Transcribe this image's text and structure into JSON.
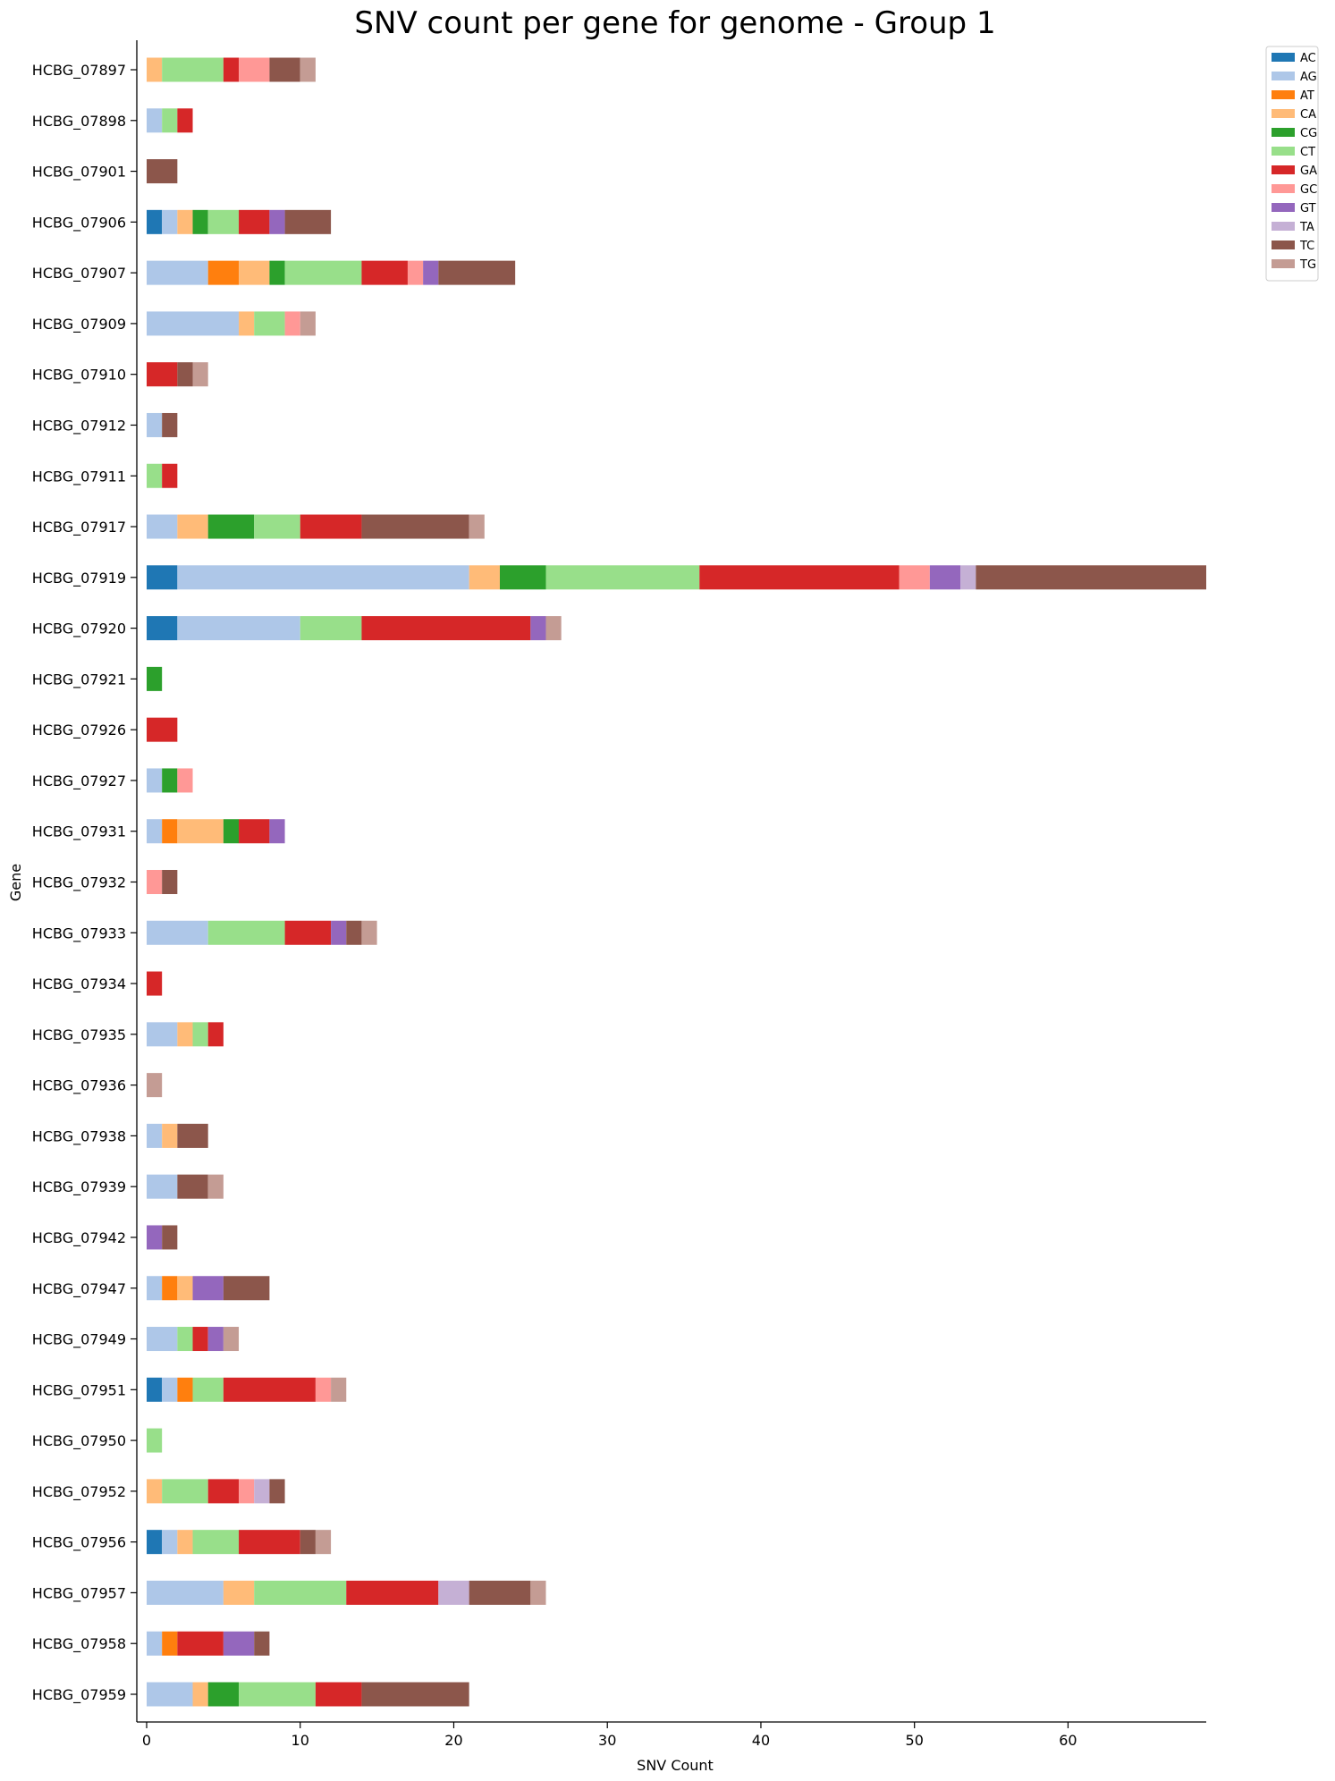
{
  "chart_data": {
    "type": "bar",
    "orientation": "horizontal",
    "stacked": true,
    "title": "SNV count per gene for genome - Group 1",
    "xlabel": "SNV Count",
    "ylabel": "Gene",
    "xlim": [
      0,
      69
    ],
    "xticks": [
      0,
      10,
      20,
      30,
      40,
      50,
      60
    ],
    "grid": false,
    "legend_position": "outside-top-right",
    "categories": [
      "HCBG_07897",
      "HCBG_07898",
      "HCBG_07901",
      "HCBG_07906",
      "HCBG_07907",
      "HCBG_07909",
      "HCBG_07910",
      "HCBG_07912",
      "HCBG_07911",
      "HCBG_07917",
      "HCBG_07919",
      "HCBG_07920",
      "HCBG_07921",
      "HCBG_07926",
      "HCBG_07927",
      "HCBG_07931",
      "HCBG_07932",
      "HCBG_07933",
      "HCBG_07934",
      "HCBG_07935",
      "HCBG_07936",
      "HCBG_07938",
      "HCBG_07939",
      "HCBG_07942",
      "HCBG_07947",
      "HCBG_07949",
      "HCBG_07951",
      "HCBG_07950",
      "HCBG_07952",
      "HCBG_07956",
      "HCBG_07957",
      "HCBG_07958",
      "HCBG_07959"
    ],
    "series": [
      {
        "name": "AC",
        "color": "#1f77b4",
        "values": [
          0,
          0,
          0,
          1,
          0,
          0,
          0,
          0,
          0,
          0,
          2,
          2,
          0,
          0,
          0,
          0,
          0,
          0,
          0,
          0,
          0,
          0,
          0,
          0,
          0,
          0,
          1,
          0,
          0,
          1,
          0,
          0,
          0
        ]
      },
      {
        "name": "AG",
        "color": "#aec7e8",
        "values": [
          0,
          1,
          0,
          1,
          4,
          6,
          0,
          1,
          0,
          2,
          19,
          8,
          0,
          0,
          1,
          1,
          0,
          4,
          0,
          2,
          0,
          1,
          2,
          0,
          1,
          2,
          1,
          0,
          0,
          1,
          5,
          1,
          3
        ]
      },
      {
        "name": "AT",
        "color": "#ff7f0e",
        "values": [
          0,
          0,
          0,
          0,
          2,
          0,
          0,
          0,
          0,
          0,
          0,
          0,
          0,
          0,
          0,
          1,
          0,
          0,
          0,
          0,
          0,
          0,
          0,
          0,
          1,
          0,
          1,
          0,
          0,
          0,
          0,
          1,
          0
        ]
      },
      {
        "name": "CA",
        "color": "#ffbb78",
        "values": [
          1,
          0,
          0,
          1,
          2,
          1,
          0,
          0,
          0,
          2,
          2,
          0,
          0,
          0,
          0,
          3,
          0,
          0,
          0,
          1,
          0,
          1,
          0,
          0,
          1,
          0,
          0,
          0,
          1,
          1,
          2,
          0,
          1
        ]
      },
      {
        "name": "CG",
        "color": "#2ca02c",
        "values": [
          0,
          0,
          0,
          1,
          1,
          0,
          0,
          0,
          0,
          3,
          3,
          0,
          1,
          0,
          1,
          1,
          0,
          0,
          0,
          0,
          0,
          0,
          0,
          0,
          0,
          0,
          0,
          0,
          0,
          0,
          0,
          0,
          2
        ]
      },
      {
        "name": "CT",
        "color": "#98df8a",
        "values": [
          4,
          1,
          0,
          2,
          5,
          2,
          0,
          0,
          1,
          3,
          10,
          4,
          0,
          0,
          0,
          0,
          0,
          5,
          0,
          1,
          0,
          0,
          0,
          0,
          0,
          1,
          2,
          1,
          3,
          3,
          6,
          0,
          5
        ]
      },
      {
        "name": "GA",
        "color": "#d62728",
        "values": [
          1,
          1,
          0,
          2,
          3,
          0,
          2,
          0,
          1,
          4,
          13,
          11,
          0,
          2,
          0,
          2,
          0,
          3,
          1,
          1,
          0,
          0,
          0,
          0,
          0,
          1,
          6,
          0,
          2,
          4,
          6,
          3,
          3
        ]
      },
      {
        "name": "GC",
        "color": "#ff9896",
        "values": [
          2,
          0,
          0,
          0,
          1,
          1,
          0,
          0,
          0,
          0,
          2,
          0,
          0,
          0,
          1,
          0,
          1,
          0,
          0,
          0,
          0,
          0,
          0,
          0,
          0,
          0,
          1,
          0,
          1,
          0,
          0,
          0,
          0
        ]
      },
      {
        "name": "GT",
        "color": "#9467bd",
        "values": [
          0,
          0,
          0,
          1,
          1,
          0,
          0,
          0,
          0,
          0,
          2,
          1,
          0,
          0,
          0,
          1,
          0,
          1,
          0,
          0,
          0,
          0,
          0,
          1,
          2,
          1,
          0,
          0,
          0,
          0,
          0,
          2,
          0
        ]
      },
      {
        "name": "TA",
        "color": "#c5b0d5",
        "values": [
          0,
          0,
          0,
          0,
          0,
          0,
          0,
          0,
          0,
          0,
          1,
          0,
          0,
          0,
          0,
          0,
          0,
          0,
          0,
          0,
          0,
          0,
          0,
          0,
          0,
          0,
          0,
          0,
          1,
          0,
          2,
          0,
          0
        ]
      },
      {
        "name": "TC",
        "color": "#8c564b",
        "values": [
          2,
          0,
          2,
          3,
          5,
          0,
          1,
          1,
          0,
          7,
          15,
          0,
          0,
          0,
          0,
          0,
          1,
          1,
          0,
          0,
          0,
          2,
          2,
          1,
          3,
          0,
          0,
          0,
          1,
          1,
          4,
          1,
          7
        ]
      },
      {
        "name": "TG",
        "color": "#c49c94",
        "values": [
          1,
          0,
          0,
          0,
          0,
          1,
          1,
          0,
          0,
          1,
          0,
          1,
          0,
          0,
          0,
          0,
          0,
          1,
          0,
          0,
          1,
          0,
          1,
          0,
          0,
          1,
          1,
          0,
          0,
          1,
          1,
          0,
          0
        ]
      }
    ]
  }
}
